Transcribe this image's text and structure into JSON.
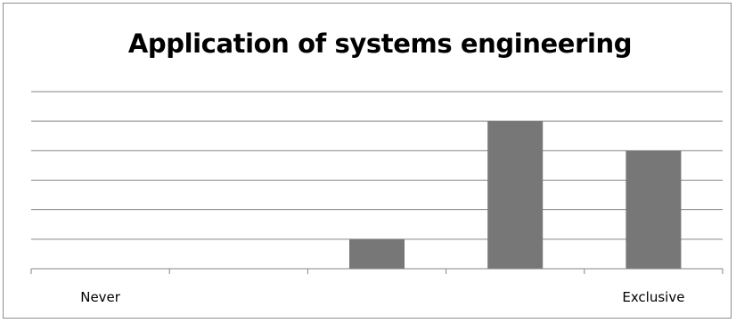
{
  "chart_data": {
    "type": "bar",
    "title": "Application of systems engineering",
    "categories": [
      "Never",
      "",
      "",
      "",
      "Exclusive"
    ],
    "values": [
      0,
      0,
      1,
      5,
      4
    ],
    "ylim": [
      0,
      6
    ],
    "grid": true,
    "bar_color": "#777777",
    "gridline_color": "#868686"
  }
}
